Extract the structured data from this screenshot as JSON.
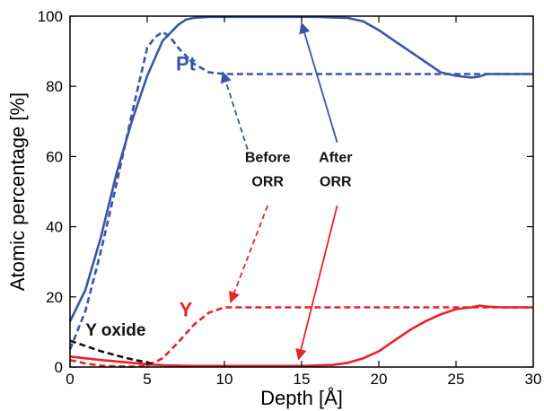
{
  "chart_data": {
    "type": "line",
    "title": "",
    "xlabel": "Depth [Å]",
    "ylabel": "Atomic percentage [%]",
    "xlim": [
      0,
      30
    ],
    "ylim": [
      0,
      100
    ],
    "xticks": [
      "0",
      "5",
      "10",
      "15",
      "20",
      "25",
      "30"
    ],
    "yticks": [
      "0",
      "20",
      "40",
      "60",
      "80",
      "100"
    ],
    "grid": false,
    "legend": "none",
    "colors": {
      "pt": "#3b54a7",
      "y": "#e8222a",
      "y_oxide": "#111111"
    },
    "series": [
      {
        "name": "Pt",
        "style": "solid",
        "color": "#3b54a7",
        "x": [
          0,
          1,
          2,
          3,
          4,
          5,
          6,
          7,
          7.5,
          8,
          9,
          10,
          12,
          14,
          16,
          18,
          19,
          20,
          21,
          22,
          23,
          24,
          25,
          26,
          26.5,
          27,
          28,
          29,
          30
        ],
        "y": [
          13,
          22,
          37,
          55,
          70,
          83,
          93,
          97.5,
          99,
          99.5,
          99.8,
          99.8,
          99.8,
          99.8,
          99.8,
          99.5,
          98.5,
          96,
          93,
          90,
          87,
          84,
          83,
          82.5,
          82.8,
          83.5,
          83.5,
          83.5,
          83.5
        ]
      },
      {
        "name": "Pt",
        "style": "dashed",
        "color": "#3b54a7",
        "x": [
          0,
          1,
          2,
          3,
          4,
          5,
          5.5,
          6,
          6.5,
          7,
          8,
          9,
          10,
          12,
          15,
          20,
          25,
          30
        ],
        "y": [
          5,
          16,
          33,
          52,
          72,
          91,
          94,
          95.5,
          94,
          91,
          86.5,
          84,
          83.5,
          83.5,
          83.5,
          83.5,
          83.5,
          83.5
        ]
      },
      {
        "name": "Y",
        "style": "solid",
        "color": "#e8222a",
        "x": [
          0,
          2,
          4,
          5,
          6,
          8,
          10,
          12,
          15,
          17,
          18,
          19,
          20,
          21,
          22,
          23,
          24,
          25,
          26,
          26.5,
          27,
          28,
          29,
          30
        ],
        "y": [
          3,
          2,
          1.2,
          0.8,
          0.5,
          0.3,
          0.3,
          0.3,
          0.3,
          0.6,
          1.2,
          2.5,
          4.5,
          7.5,
          10.5,
          13,
          15,
          16.5,
          17,
          17.5,
          17.2,
          17,
          17,
          17
        ]
      },
      {
        "name": "Y",
        "style": "dashed",
        "color": "#e8222a",
        "x": [
          0,
          1,
          2,
          3,
          4,
          5,
          6,
          7,
          8,
          9,
          10,
          12,
          15,
          20,
          25,
          30
        ],
        "y": [
          2,
          1,
          0.4,
          0.2,
          0.1,
          0.3,
          2.5,
          7,
          12,
          15.5,
          17,
          17,
          17,
          17,
          17,
          17
        ]
      },
      {
        "name": "Y oxide",
        "style": "dashed",
        "color": "#111111",
        "x": [
          0,
          1,
          2,
          3,
          4,
          5,
          5.5
        ],
        "y": [
          7.5,
          6,
          4.5,
          3.3,
          2.2,
          1.3,
          0.8
        ]
      }
    ],
    "annotations": [
      {
        "text": "Pt",
        "color": "#3b54a7",
        "x": 7.5,
        "y": 84.5
      },
      {
        "text": "Y",
        "color": "#e8222a",
        "x": 7.5,
        "y": 14.5
      },
      {
        "text": "Y oxide",
        "color": "#111111",
        "x": 1,
        "y": 9
      },
      {
        "text": "Before",
        "color": "#111111",
        "x": 12.8,
        "y": 58.5
      },
      {
        "text": "ORR",
        "color": "#111111",
        "x": 12.8,
        "y": 51.5
      },
      {
        "text": "After",
        "color": "#111111",
        "x": 17.2,
        "y": 58.5
      },
      {
        "text": "ORR",
        "color": "#111111",
        "x": 17.2,
        "y": 51.5
      }
    ],
    "arrows": [
      {
        "color": "#3b54a7",
        "style": "dashed",
        "from": [
          11.5,
          62
        ],
        "to": [
          9.9,
          84
        ]
      },
      {
        "color": "#e8222a",
        "style": "dashed",
        "from": [
          12.8,
          46
        ],
        "to": [
          10.4,
          18.5
        ]
      },
      {
        "color": "#3b54a7",
        "style": "solid",
        "from": [
          17.3,
          64
        ],
        "to": [
          15,
          98
        ]
      },
      {
        "color": "#e8222a",
        "style": "solid",
        "from": [
          17.3,
          46
        ],
        "to": [
          14.8,
          2.2
        ]
      }
    ]
  }
}
